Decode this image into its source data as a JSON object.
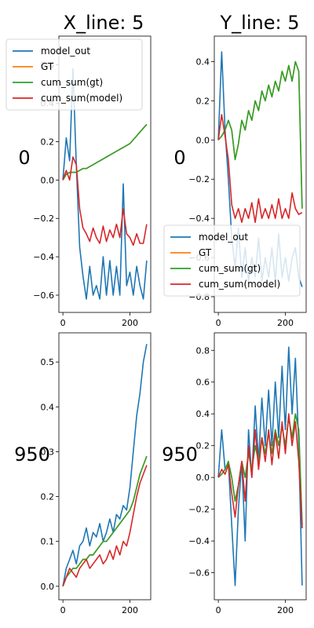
{
  "column_titles": [
    "X_line: 5",
    "Y_line: 5"
  ],
  "row_labels": [
    "0",
    "950"
  ],
  "colors": {
    "model_out": "#1f77b4",
    "GT": "#ff7f0e",
    "cum_sum_gt": "#2ca02c",
    "cum_sum_model": "#d62728"
  },
  "chart_data": [
    {
      "type": "line",
      "row_label": "0",
      "column_title": "X_line: 5",
      "xlim": [
        -12,
        262
      ],
      "ylim": [
        -0.69,
        0.75
      ],
      "xticks": [
        0,
        200
      ],
      "yticks": [
        -0.6,
        -0.4,
        -0.2,
        0.0,
        0.2,
        0.4,
        0.6
      ],
      "ytick_labels": [
        "−0.6",
        "−0.4",
        "−0.2",
        "0.0",
        "0.2",
        "0.4",
        "0.6"
      ],
      "legend": "top-left",
      "x": [
        0,
        10,
        20,
        30,
        40,
        50,
        60,
        70,
        80,
        90,
        100,
        110,
        120,
        130,
        140,
        150,
        160,
        170,
        180,
        190,
        200,
        210,
        220,
        230,
        240,
        250
      ],
      "series": [
        {
          "name": "model_out",
          "key": "model_out",
          "values": [
            0.0,
            0.22,
            0.1,
            0.58,
            0.08,
            -0.35,
            -0.5,
            -0.62,
            -0.45,
            -0.6,
            -0.55,
            -0.62,
            -0.4,
            -0.6,
            -0.42,
            -0.6,
            -0.45,
            -0.6,
            -0.02,
            -0.55,
            -0.48,
            -0.6,
            -0.45,
            -0.55,
            -0.62,
            -0.42
          ]
        },
        {
          "name": "GT",
          "key": "GT",
          "values": [
            0.0,
            0.03,
            0.04,
            0.04,
            0.04,
            0.05,
            0.06,
            0.06,
            0.07,
            0.08,
            0.09,
            0.1,
            0.11,
            0.12,
            0.13,
            0.14,
            0.15,
            0.16,
            0.17,
            0.18,
            0.19,
            0.21,
            0.23,
            0.25,
            0.27,
            0.29
          ]
        },
        {
          "name": "cum_sum(gt)",
          "key": "cum_sum_gt",
          "values": [
            0.0,
            0.03,
            0.04,
            0.04,
            0.04,
            0.05,
            0.06,
            0.06,
            0.07,
            0.08,
            0.09,
            0.1,
            0.11,
            0.12,
            0.13,
            0.14,
            0.15,
            0.16,
            0.17,
            0.18,
            0.19,
            0.21,
            0.23,
            0.25,
            0.27,
            0.29
          ]
        },
        {
          "name": "cum_sum(model)",
          "key": "cum_sum_model",
          "values": [
            0.0,
            0.05,
            0.0,
            0.12,
            0.08,
            -0.15,
            -0.25,
            -0.28,
            -0.32,
            -0.25,
            -0.3,
            -0.33,
            -0.24,
            -0.32,
            -0.26,
            -0.3,
            -0.23,
            -0.3,
            -0.15,
            -0.28,
            -0.3,
            -0.34,
            -0.28,
            -0.33,
            -0.33,
            -0.23
          ]
        }
      ]
    },
    {
      "type": "line",
      "row_label": "0",
      "column_title": "Y_line: 5",
      "xlim": [
        -12,
        262
      ],
      "ylim": [
        -0.88,
        0.53
      ],
      "xticks": [
        0,
        200
      ],
      "yticks": [
        -0.8,
        -0.6,
        -0.4,
        -0.2,
        0.0,
        0.2,
        0.4
      ],
      "ytick_labels": [
        "−0.8",
        "−0.6",
        "−0.4",
        "−0.2",
        "0.0",
        "0.2",
        "0.4"
      ],
      "legend": "lower-left",
      "x": [
        0,
        10,
        20,
        30,
        40,
        50,
        60,
        70,
        80,
        90,
        100,
        110,
        120,
        130,
        140,
        150,
        160,
        170,
        180,
        190,
        200,
        210,
        220,
        230,
        240,
        250
      ],
      "series": [
        {
          "name": "model_out",
          "key": "model_out",
          "values": [
            0.0,
            0.45,
            0.05,
            -0.2,
            -0.5,
            -0.65,
            -0.45,
            -0.7,
            -0.55,
            -0.72,
            -0.6,
            -0.7,
            -0.5,
            -0.72,
            -0.6,
            -0.7,
            -0.55,
            -0.72,
            -0.48,
            -0.7,
            -0.6,
            -0.72,
            -0.6,
            -0.55,
            -0.7,
            -0.75
          ]
        },
        {
          "name": "GT",
          "key": "GT",
          "values": [
            0.0,
            0.02,
            0.05,
            0.1,
            0.05,
            -0.1,
            -0.02,
            0.1,
            0.05,
            0.15,
            0.1,
            0.2,
            0.15,
            0.25,
            0.2,
            0.28,
            0.22,
            0.3,
            0.25,
            0.35,
            0.3,
            0.38,
            0.3,
            0.4,
            0.35,
            -0.35
          ]
        },
        {
          "name": "cum_sum(gt)",
          "key": "cum_sum_gt",
          "values": [
            0.0,
            0.02,
            0.05,
            0.1,
            0.05,
            -0.1,
            -0.02,
            0.1,
            0.05,
            0.15,
            0.1,
            0.2,
            0.15,
            0.25,
            0.2,
            0.28,
            0.22,
            0.3,
            0.25,
            0.35,
            0.3,
            0.38,
            0.3,
            0.4,
            0.35,
            -0.35
          ]
        },
        {
          "name": "cum_sum(model)",
          "key": "cum_sum_model",
          "values": [
            0.0,
            0.13,
            0.02,
            -0.1,
            -0.33,
            -0.4,
            -0.35,
            -0.42,
            -0.35,
            -0.4,
            -0.32,
            -0.42,
            -0.3,
            -0.4,
            -0.35,
            -0.4,
            -0.33,
            -0.4,
            -0.3,
            -0.4,
            -0.35,
            -0.4,
            -0.27,
            -0.35,
            -0.38,
            -0.37
          ]
        }
      ]
    },
    {
      "type": "line",
      "row_label": "950",
      "column_title": "X_line: 5",
      "xlim": [
        -12,
        262
      ],
      "ylim": [
        -0.03,
        0.565
      ],
      "xticks": [
        0,
        200
      ],
      "yticks": [
        0.0,
        0.1,
        0.2,
        0.3,
        0.4,
        0.5
      ],
      "ytick_labels": [
        "0.0",
        "0.1",
        "0.2",
        "0.3",
        "0.4",
        "0.5"
      ],
      "x": [
        0,
        10,
        20,
        30,
        40,
        50,
        60,
        70,
        80,
        90,
        100,
        110,
        120,
        130,
        140,
        150,
        160,
        170,
        180,
        190,
        200,
        210,
        220,
        230,
        240,
        250
      ],
      "series": [
        {
          "name": "model_out",
          "key": "model_out",
          "values": [
            0.0,
            0.04,
            0.06,
            0.08,
            0.05,
            0.09,
            0.1,
            0.13,
            0.09,
            0.12,
            0.11,
            0.14,
            0.1,
            0.12,
            0.15,
            0.12,
            0.16,
            0.15,
            0.18,
            0.17,
            0.22,
            0.3,
            0.38,
            0.43,
            0.5,
            0.54
          ]
        },
        {
          "name": "GT",
          "key": "GT",
          "values": [
            0.0,
            0.02,
            0.03,
            0.04,
            0.04,
            0.05,
            0.06,
            0.06,
            0.07,
            0.07,
            0.08,
            0.09,
            0.1,
            0.1,
            0.11,
            0.12,
            0.13,
            0.14,
            0.15,
            0.16,
            0.17,
            0.19,
            0.22,
            0.25,
            0.27,
            0.29
          ]
        },
        {
          "name": "cum_sum(gt)",
          "key": "cum_sum_gt",
          "values": [
            0.0,
            0.02,
            0.03,
            0.04,
            0.04,
            0.05,
            0.06,
            0.06,
            0.07,
            0.07,
            0.08,
            0.09,
            0.1,
            0.1,
            0.11,
            0.12,
            0.13,
            0.14,
            0.15,
            0.16,
            0.17,
            0.19,
            0.22,
            0.25,
            0.27,
            0.29
          ]
        },
        {
          "name": "cum_sum(model)",
          "key": "cum_sum_model",
          "values": [
            0.0,
            0.02,
            0.04,
            0.03,
            0.02,
            0.04,
            0.05,
            0.06,
            0.04,
            0.05,
            0.06,
            0.07,
            0.05,
            0.06,
            0.08,
            0.06,
            0.09,
            0.07,
            0.1,
            0.09,
            0.12,
            0.16,
            0.2,
            0.23,
            0.25,
            0.27
          ]
        }
      ]
    },
    {
      "type": "line",
      "row_label": "950",
      "column_title": "Y_line: 5",
      "xlim": [
        -12,
        262
      ],
      "ylim": [
        -0.77,
        0.91
      ],
      "xticks": [
        0,
        200
      ],
      "yticks": [
        -0.6,
        -0.4,
        -0.2,
        0.0,
        0.2,
        0.4,
        0.6,
        0.8
      ],
      "ytick_labels": [
        "−0.6",
        "−0.4",
        "−0.2",
        "0.0",
        "0.2",
        "0.4",
        "0.6",
        "0.8"
      ],
      "x": [
        0,
        10,
        20,
        30,
        40,
        50,
        60,
        70,
        80,
        90,
        100,
        110,
        120,
        130,
        140,
        150,
        160,
        170,
        180,
        190,
        200,
        210,
        220,
        230,
        240,
        250
      ],
      "series": [
        {
          "name": "model_out",
          "key": "model_out",
          "values": [
            0.0,
            0.3,
            0.05,
            0.1,
            -0.3,
            -0.68,
            -0.2,
            0.1,
            -0.4,
            0.3,
            0.0,
            0.45,
            0.1,
            0.5,
            0.2,
            0.55,
            0.2,
            0.6,
            0.25,
            0.7,
            0.3,
            0.82,
            0.4,
            0.75,
            0.2,
            -0.68
          ]
        },
        {
          "name": "GT",
          "key": "GT",
          "values": [
            0.0,
            0.02,
            0.05,
            0.1,
            0.0,
            -0.15,
            -0.05,
            0.1,
            0.0,
            0.15,
            0.05,
            0.2,
            0.1,
            0.25,
            0.15,
            0.28,
            0.15,
            0.3,
            0.2,
            0.32,
            0.2,
            0.38,
            0.25,
            0.4,
            0.3,
            -0.3
          ]
        },
        {
          "name": "cum_sum(gt)",
          "key": "cum_sum_gt",
          "values": [
            0.0,
            0.02,
            0.05,
            0.1,
            0.0,
            -0.15,
            -0.05,
            0.1,
            0.0,
            0.15,
            0.05,
            0.2,
            0.1,
            0.25,
            0.15,
            0.28,
            0.15,
            0.3,
            0.2,
            0.32,
            0.2,
            0.38,
            0.25,
            0.4,
            0.3,
            -0.3
          ]
        },
        {
          "name": "cum_sum(model)",
          "key": "cum_sum_model",
          "values": [
            0.0,
            0.05,
            0.02,
            0.08,
            -0.1,
            -0.25,
            -0.05,
            0.1,
            -0.15,
            0.2,
            0.0,
            0.3,
            0.05,
            0.25,
            0.1,
            0.3,
            0.08,
            0.28,
            0.12,
            0.35,
            0.15,
            0.4,
            0.2,
            0.35,
            0.1,
            -0.32
          ]
        }
      ]
    }
  ]
}
